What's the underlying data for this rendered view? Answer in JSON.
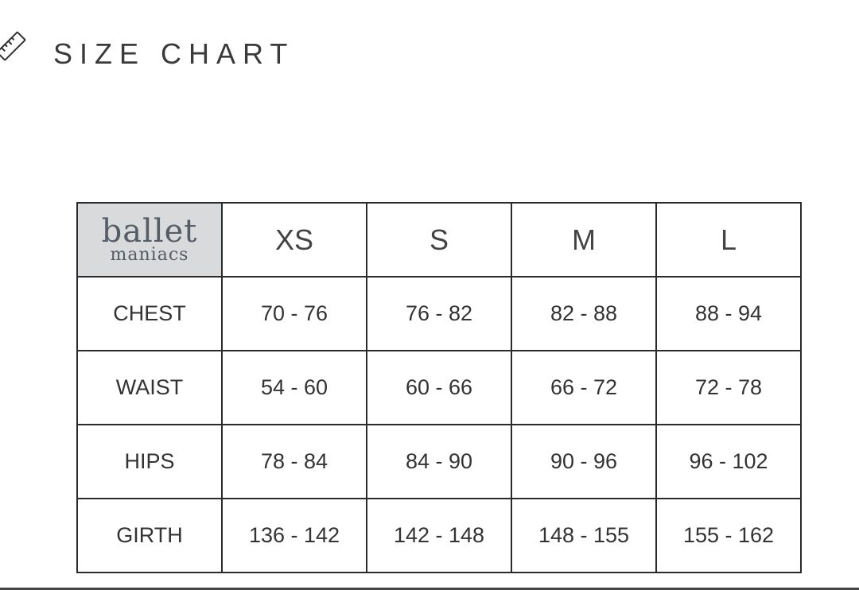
{
  "header": {
    "title": "SIZE CHART",
    "icon": "ruler-icon"
  },
  "table": {
    "logo": {
      "line1": "ballet",
      "line2": "maniacs"
    },
    "sizes": [
      "XS",
      "S",
      "M",
      "L"
    ],
    "rows": [
      {
        "label": "CHEST",
        "values": [
          "70 - 76",
          "76 - 82",
          "82 - 88",
          "88 - 94"
        ]
      },
      {
        "label": "WAIST",
        "values": [
          "54 - 60",
          "60 - 66",
          "66 - 72",
          "72 - 78"
        ]
      },
      {
        "label": "HIPS",
        "values": [
          "78 - 84",
          "84 - 90",
          "90 - 96",
          "96 - 102"
        ]
      },
      {
        "label": "GIRTH",
        "values": [
          "136 - 142",
          "142 - 148",
          "148 - 155",
          "155 - 162"
        ]
      }
    ]
  }
}
